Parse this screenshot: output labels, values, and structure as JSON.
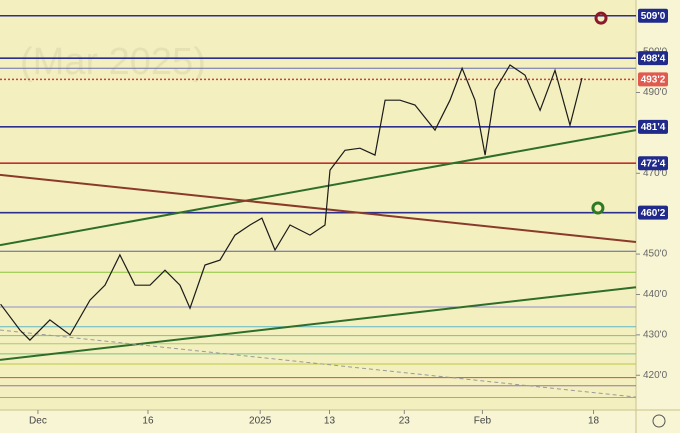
{
  "chart_data": {
    "type": "line",
    "watermark": "(Mar 2025)",
    "x": [
      -3.4,
      -1.64,
      -0.73,
      1.09,
      2.91,
      4.73,
      6.09,
      7.45,
      8.82,
      10.18,
      11.55,
      12.91,
      13.82,
      15.18,
      16.55,
      17.91,
      19.27,
      20.36,
      21.55,
      22.91,
      24.73,
      26.09,
      26.55,
      27.91,
      29.27,
      30.64,
      31.55,
      32.91,
      34.27,
      36.09,
      37.45,
      38.55,
      39.73,
      40.64,
      41.55,
      42.91,
      44.27,
      45.64,
      47,
      48.36,
      49.45
    ],
    "values": [
      437.6,
      431.2,
      428.7,
      433.7,
      430,
      438.6,
      442.3,
      449.8,
      442.3,
      442.3,
      446,
      442.3,
      436.6,
      447.3,
      448.5,
      454.7,
      457.2,
      458.9,
      451,
      457.2,
      454.7,
      457.2,
      470.8,
      475.7,
      476.2,
      474.5,
      488.1,
      488.1,
      486.9,
      480.7,
      488.1,
      496,
      488.1,
      474.5,
      490.6,
      496.8,
      494.3,
      485.6,
      495.5,
      481.9,
      493.6
    ],
    "color": "#1b1b1b",
    "xlim": [
      -3.45,
      54.36
    ],
    "ylim": [
      411.4,
      512.9
    ],
    "xticks": [
      {
        "value": 0,
        "label": "Dec"
      },
      {
        "value": 10,
        "label": "16"
      },
      {
        "value": 20.2,
        "label": "2025"
      },
      {
        "value": 26.5,
        "label": "13"
      },
      {
        "value": 33.3,
        "label": "23"
      },
      {
        "value": 40.4,
        "label": "Feb"
      },
      {
        "value": 50.5,
        "label": "18"
      }
    ],
    "yticks": [
      {
        "value": 420,
        "label": "420'0"
      },
      {
        "value": 430,
        "label": "430'0"
      },
      {
        "value": 440,
        "label": "440'0"
      },
      {
        "value": 450,
        "label": "450'0"
      },
      {
        "value": 470,
        "label": "470'0"
      },
      {
        "value": 490,
        "label": "490'0"
      },
      {
        "value": 500,
        "label": "500'0"
      }
    ],
    "levels": [
      {
        "value": 509,
        "label": "509'0",
        "color": "#2b2f8f",
        "label_color": "#1f2a8a"
      },
      {
        "value": 498.5,
        "label": "498'4",
        "color": "#2b2f8f",
        "label_color": "#1f2a8a"
      },
      {
        "value": 496,
        "color": "#6a6fb0"
      },
      {
        "value": 493.25,
        "label": "493'2",
        "color": "#d04040",
        "label_color": "#e05a4f"
      },
      {
        "value": 481.5,
        "label": "481'4",
        "color": "#2b2f8f",
        "label_color": "#1f2a8a"
      },
      {
        "value": 472.5,
        "label": "472'4",
        "color": "#c03030",
        "label_color": "#1f2a8a"
      },
      {
        "value": 460.25,
        "label": "460'2",
        "color": "#2b2f8f",
        "label_color": "#1f2a8a"
      },
      {
        "value": 450.7,
        "color": "#5a5fa8"
      },
      {
        "value": 445.5,
        "color": "#8cc63f"
      },
      {
        "value": 436.9,
        "color": "#8c8fd0"
      },
      {
        "value": 432,
        "color": "#5fb8c8"
      },
      {
        "value": 429.8,
        "color": "#7ac08a"
      },
      {
        "value": 427.8,
        "color": "#9fd06a"
      },
      {
        "value": 425.3,
        "color": "#7ac08a"
      },
      {
        "value": 422.8,
        "color": "#b8c840"
      },
      {
        "value": 419.4,
        "color": "#c85050"
      },
      {
        "value": 417.4,
        "color": "#9a70b0"
      },
      {
        "value": 414.5,
        "color": "#c8a060"
      }
    ],
    "trendlines": [
      {
        "x": [
          -3.45,
          54.36
        ],
        "values": [
          423.8,
          441.8
        ],
        "color": "#2e6e2a",
        "dashed": false
      },
      {
        "x": [
          -3.45,
          54.36
        ],
        "values": [
          452.2,
          480.7
        ],
        "color": "#2e6e2a",
        "dashed": false
      },
      {
        "x": [
          -3.45,
          54.36
        ],
        "values": [
          469.6,
          453
        ],
        "color": "#8a3a2a",
        "dashed": false
      },
      {
        "x": [
          -3.45,
          54.36
        ],
        "values": [
          431.2,
          414.6
        ],
        "color": "#9a9a9a",
        "dashed": true
      }
    ],
    "markers": [
      {
        "x": 51.18,
        "value": 508.4,
        "color": "#8a1a2a"
      },
      {
        "x": 50.9,
        "value": 461.4,
        "color": "#2e7a22"
      }
    ]
  }
}
